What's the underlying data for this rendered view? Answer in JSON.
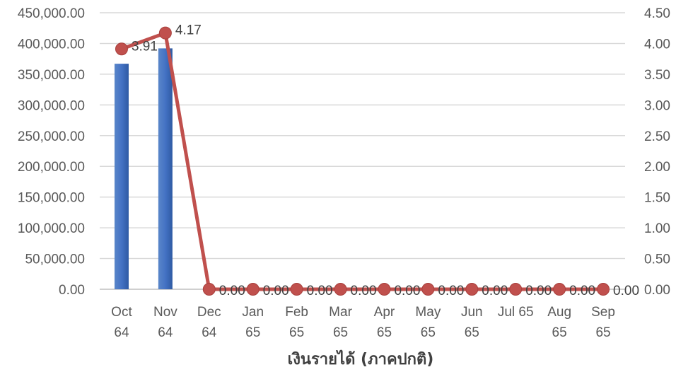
{
  "chart_data": {
    "type": "bar",
    "title": "",
    "xlabel": "เงินรายได้ (ภาคปกติ)",
    "ylabel": "",
    "categories": [
      [
        "Oct",
        "64"
      ],
      [
        "Nov",
        "64"
      ],
      [
        "Dec",
        "64"
      ],
      [
        "Jan",
        "65"
      ],
      [
        "Feb",
        "65"
      ],
      [
        "Mar",
        "65"
      ],
      [
        "Apr",
        "65"
      ],
      [
        "May",
        "65"
      ],
      [
        "Jun",
        "65"
      ],
      [
        "Jul 65",
        ""
      ],
      [
        "Aug",
        "65"
      ],
      [
        "Sep",
        "65"
      ]
    ],
    "series": [
      {
        "type": "bar",
        "axis": "left",
        "color": "#4472C4",
        "values": [
          367000,
          392000,
          0,
          0,
          0,
          0,
          0,
          0,
          0,
          0,
          0,
          0
        ]
      },
      {
        "type": "line",
        "axis": "right",
        "color": "#C0504D",
        "values": [
          3.91,
          4.17,
          0,
          0,
          0,
          0,
          0,
          0,
          0,
          0,
          0,
          0
        ],
        "labels": [
          "3.91",
          "4.17",
          "0.00",
          "0.00",
          "0.00",
          "0.00",
          "0.00",
          "0.00",
          "0.00",
          "0.00",
          "0.00",
          "0.00"
        ]
      }
    ],
    "y_left": {
      "lim": [
        0,
        450000
      ],
      "ticks": [
        "0.00",
        "50,000.00",
        "100,000.00",
        "150,000.00",
        "200,000.00",
        "250,000.00",
        "300,000.00",
        "350,000.00",
        "400,000.00",
        "450,000.00"
      ]
    },
    "y_right": {
      "lim": [
        0,
        4.5
      ],
      "ticks": [
        "0.00",
        "0.50",
        "1.00",
        "1.50",
        "2.00",
        "2.50",
        "3.00",
        "3.50",
        "4.00",
        "4.50"
      ]
    },
    "grid": true,
    "legend": "none"
  }
}
